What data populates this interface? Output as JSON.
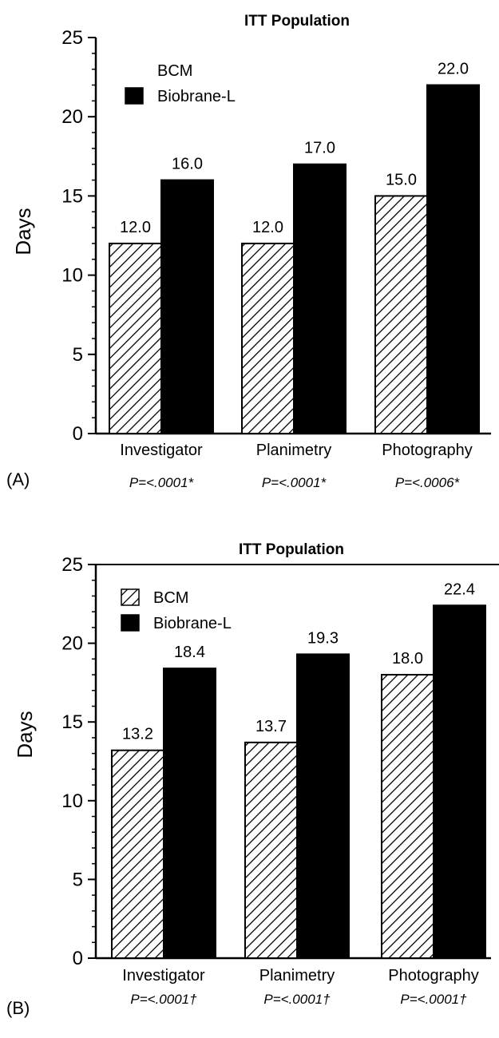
{
  "chart_data": [
    {
      "type": "bar",
      "title": "ITT Population",
      "ylabel": "Days",
      "panel_label": "(A)",
      "categories": [
        "Investigator",
        "Planimetry",
        "Photography"
      ],
      "p_values": [
        "P=<.0001*",
        "P=<.0001*",
        "P=<.0006*"
      ],
      "series": [
        {
          "name": "BCM",
          "values": [
            12.0,
            12.0,
            15.0
          ],
          "pattern": "hatched"
        },
        {
          "name": "Biobrane-L",
          "values": [
            16.0,
            17.0,
            22.0
          ],
          "color": "#000000"
        }
      ],
      "data_labels": [
        [
          "12.0",
          "12.0",
          "15.0"
        ],
        [
          "16.0",
          "17.0",
          "22.0"
        ]
      ],
      "ylim": [
        0,
        25
      ],
      "yticks": [
        "0",
        "5",
        "10",
        "15",
        "20",
        "25"
      ],
      "legend_position": "top-left"
    },
    {
      "type": "bar",
      "title": "ITT Population",
      "ylabel": "Days",
      "panel_label": "(B)",
      "categories": [
        "Investigator",
        "Planimetry",
        "Photography"
      ],
      "p_values": [
        "P=<.0001†",
        "P=<.0001†",
        "P=<.0001†"
      ],
      "series": [
        {
          "name": "BCM",
          "values": [
            13.2,
            13.7,
            18.0
          ],
          "pattern": "hatched"
        },
        {
          "name": "Biobrane-L",
          "values": [
            18.4,
            19.3,
            22.4
          ],
          "color": "#000000"
        }
      ],
      "data_labels": [
        [
          "13.2",
          "13.7",
          "18.0"
        ],
        [
          "18.4",
          "19.3",
          "22.4"
        ]
      ],
      "ylim": [
        0,
        25
      ],
      "yticks": [
        "0",
        "5",
        "10",
        "15",
        "20",
        "25"
      ],
      "legend_position": "top-left"
    }
  ]
}
